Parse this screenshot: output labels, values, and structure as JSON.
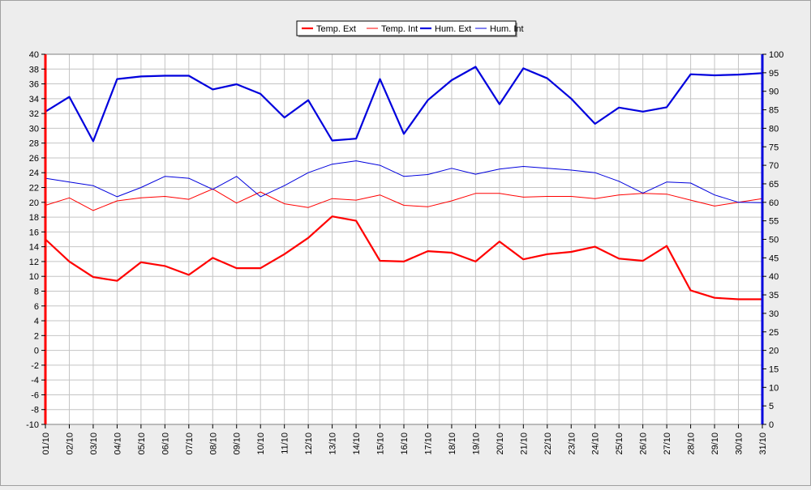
{
  "chart_data": {
    "type": "line",
    "title": "",
    "xlabel": "",
    "ylabel": "",
    "y2label": "",
    "grid": true,
    "legend_position": "top-center",
    "categories": [
      "01/10",
      "02/10",
      "03/10",
      "04/10",
      "05/10",
      "06/10",
      "07/10",
      "08/10",
      "09/10",
      "10/10",
      "11/10",
      "12/10",
      "13/10",
      "14/10",
      "15/10",
      "16/10",
      "17/10",
      "18/10",
      "19/10",
      "20/10",
      "21/10",
      "22/10",
      "23/10",
      "24/10",
      "25/10",
      "26/10",
      "27/10",
      "28/10",
      "29/10",
      "30/10",
      "31/10"
    ],
    "y_left": {
      "min": -10,
      "max": 40,
      "step": 2
    },
    "y_right": {
      "min": 0,
      "max": 100,
      "step": 5
    },
    "series": [
      {
        "name": "Temp. Ext",
        "axis": "left",
        "color": "#ff0000",
        "thick": true,
        "values": [
          15.0,
          12.0,
          9.9,
          9.4,
          11.9,
          11.4,
          10.2,
          12.5,
          11.1,
          11.1,
          13.0,
          15.2,
          18.1,
          17.5,
          12.1,
          12.0,
          13.4,
          13.2,
          12.0,
          14.7,
          12.3,
          13.0,
          13.3,
          14.0,
          12.4,
          12.1,
          14.1,
          8.1,
          7.1,
          6.9,
          6.9
        ]
      },
      {
        "name": "Temp. Int",
        "axis": "left",
        "color": "#ff0000",
        "thick": false,
        "values": [
          19.6,
          20.6,
          18.9,
          20.2,
          20.6,
          20.8,
          20.4,
          21.8,
          19.9,
          21.4,
          19.8,
          19.3,
          20.5,
          20.3,
          21.0,
          19.6,
          19.4,
          20.2,
          21.2,
          21.2,
          20.7,
          20.8,
          20.8,
          20.5,
          21.0,
          21.2,
          21.1,
          20.3,
          19.5,
          20.0,
          20.5
        ]
      },
      {
        "name": "Hum. Ext",
        "axis": "right",
        "color": "#0000dd",
        "thick": true,
        "values": [
          84.5,
          88.5,
          76.5,
          93.3,
          94.0,
          94.2,
          94.2,
          90.5,
          91.9,
          89.3,
          82.9,
          87.6,
          76.7,
          77.2,
          93.3,
          78.5,
          87.6,
          93.0,
          96.6,
          86.5,
          96.2,
          93.5,
          88.0,
          81.2,
          85.6,
          84.5,
          85.7,
          94.6,
          94.3,
          94.5,
          94.9
        ]
      },
      {
        "name": "Hum. Int",
        "axis": "right",
        "color": "#0000dd",
        "thick": false,
        "values": [
          66.5,
          65.5,
          64.5,
          61.5,
          64.0,
          67.0,
          66.5,
          63.5,
          67.0,
          61.5,
          64.5,
          68.0,
          70.3,
          71.2,
          70.0,
          67.0,
          67.5,
          69.2,
          67.6,
          69.0,
          69.7,
          69.2,
          68.7,
          68.0,
          65.7,
          62.5,
          65.5,
          65.2,
          62.0,
          60.0,
          59.9
        ]
      }
    ]
  }
}
